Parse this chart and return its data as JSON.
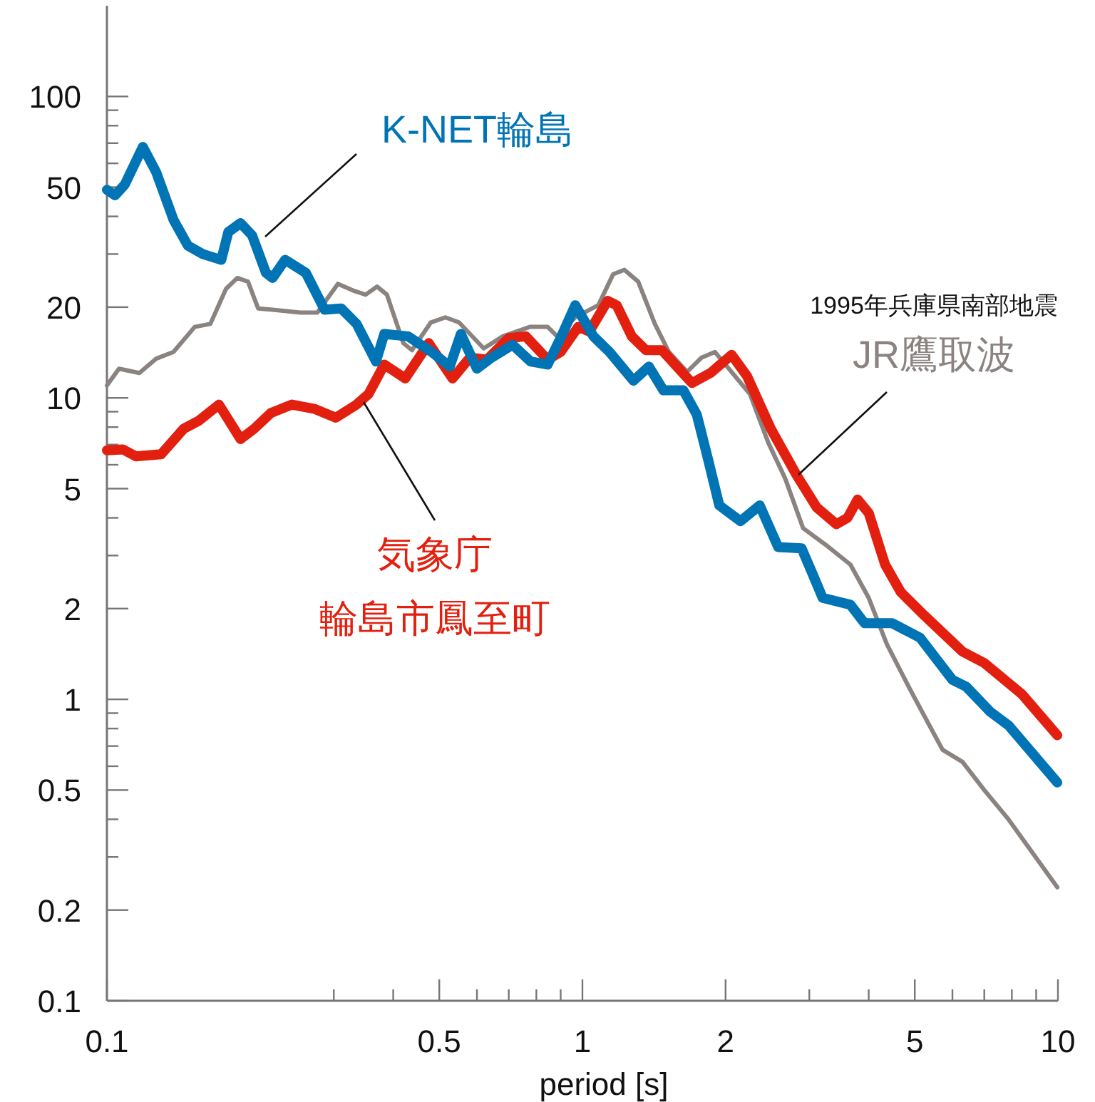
{
  "chart_data": {
    "type": "line",
    "xlabel": "period [s]",
    "log": "xy",
    "grid": false,
    "legend": false,
    "marker": "none",
    "line_style": "solid",
    "xlim": [
      0.1,
      10
    ],
    "ylim": [
      0.1,
      200
    ],
    "xticks": [
      0.1,
      {
        "value": 0.3,
        "label": null
      },
      {
        "value": 0.4,
        "label": null
      },
      0.5,
      {
        "value": 0.6,
        "label": null
      },
      {
        "value": 0.7,
        "label": null
      },
      {
        "value": 0.8,
        "label": null
      },
      {
        "value": 0.9,
        "label": null
      },
      1,
      2,
      {
        "value": 3,
        "label": null
      },
      {
        "value": 4,
        "label": null
      },
      5,
      {
        "value": 6,
        "label": null
      },
      {
        "value": 7,
        "label": null
      },
      {
        "value": 8,
        "label": null
      },
      {
        "value": 9,
        "label": null
      },
      10
    ],
    "yticks": [
      0.1,
      0.2,
      {
        "value": 0.3,
        "label": null
      },
      {
        "value": 0.4,
        "label": null
      },
      0.5,
      {
        "value": 0.6,
        "label": null
      },
      {
        "value": 0.7,
        "label": null
      },
      {
        "value": 0.8,
        "label": null
      },
      {
        "value": 0.9,
        "label": null
      },
      1,
      2,
      {
        "value": 3,
        "label": null
      },
      {
        "value": 4,
        "label": null
      },
      5,
      {
        "value": 6,
        "label": null
      },
      {
        "value": 7,
        "label": null
      },
      {
        "value": 8,
        "label": null
      },
      {
        "value": 9,
        "label": null
      },
      10,
      20,
      {
        "value": 30,
        "label": null
      },
      {
        "value": 40,
        "label": null
      },
      50,
      {
        "value": 60,
        "label": null
      },
      {
        "value": 70,
        "label": null
      },
      {
        "value": 80,
        "label": null
      },
      {
        "value": 90,
        "label": null
      },
      100
    ],
    "annotations": [
      "1995年兵庫県南部地震"
    ],
    "series": [
      {
        "name": "K-NET輪島",
        "color": "#0074b4",
        "x": [
          0.1,
          0.104,
          0.109,
          0.119,
          0.127,
          0.138,
          0.148,
          0.159,
          0.174,
          0.18,
          0.191,
          0.202,
          0.216,
          0.223,
          0.237,
          0.262,
          0.287,
          0.311,
          0.335,
          0.368,
          0.383,
          0.43,
          0.482,
          0.526,
          0.555,
          0.6,
          0.644,
          0.713,
          0.778,
          0.845,
          0.903,
          0.966,
          1.055,
          1.14,
          1.28,
          1.38,
          1.48,
          1.63,
          1.74,
          1.84,
          1.94,
          2.15,
          2.36,
          2.58,
          2.89,
          3.05,
          3.2,
          3.66,
          3.92,
          4.48,
          5.13,
          6.0,
          6.42,
          7.2,
          7.87,
          9.97
        ],
        "values": [
          49,
          47,
          51,
          68,
          56,
          39,
          32,
          30,
          28.7,
          35.5,
          38,
          34.6,
          26,
          25,
          28.7,
          26,
          19.6,
          19.8,
          17.6,
          13.2,
          16.3,
          16,
          14.2,
          12.7,
          16.3,
          12.5,
          13.6,
          15,
          13.2,
          12.9,
          16,
          20.3,
          16,
          14.2,
          11.4,
          12.7,
          10.6,
          10.6,
          8.8,
          6.2,
          4.4,
          3.9,
          4.4,
          3.2,
          3.17,
          2.6,
          2.17,
          2.06,
          1.79,
          1.79,
          1.6,
          1.16,
          1.1,
          0.91,
          0.82,
          0.53
        ]
      },
      {
        "name": "気象庁輪島市鳳至町",
        "color": "#e3200f",
        "x": [
          0.1,
          0.108,
          0.115,
          0.13,
          0.145,
          0.156,
          0.172,
          0.191,
          0.204,
          0.221,
          0.245,
          0.273,
          0.303,
          0.335,
          0.355,
          0.383,
          0.424,
          0.475,
          0.533,
          0.58,
          0.63,
          0.7,
          0.76,
          0.845,
          0.9,
          0.98,
          1.034,
          1.13,
          1.18,
          1.27,
          1.36,
          1.47,
          1.58,
          1.7,
          1.86,
          2.06,
          2.22,
          2.49,
          2.82,
          3.11,
          3.42,
          3.61,
          3.79,
          4.0,
          4.33,
          4.67,
          5.25,
          6.3,
          7.0,
          8.4,
          9.97
        ],
        "values": [
          6.7,
          6.75,
          6.4,
          6.5,
          7.9,
          8.4,
          9.5,
          7.3,
          7.9,
          8.9,
          9.5,
          9.2,
          8.6,
          9.5,
          10.3,
          12.9,
          11.6,
          15.2,
          11.6,
          13.6,
          13.4,
          15.8,
          16,
          13.4,
          14.2,
          17.2,
          16.6,
          21,
          20.3,
          16,
          14.4,
          14.4,
          12.7,
          11.2,
          12.1,
          13.9,
          11.8,
          7.9,
          5.55,
          4.33,
          3.81,
          4.0,
          4.6,
          4.15,
          2.8,
          2.27,
          1.89,
          1.44,
          1.32,
          1.04,
          0.76
        ]
      },
      {
        "name": "JR鷹取波",
        "color": "#8a8380",
        "x": [
          0.1,
          0.106,
          0.117,
          0.127,
          0.138,
          0.153,
          0.165,
          0.178,
          0.188,
          0.198,
          0.208,
          0.223,
          0.255,
          0.277,
          0.306,
          0.332,
          0.35,
          0.37,
          0.388,
          0.42,
          0.438,
          0.48,
          0.515,
          0.55,
          0.62,
          0.68,
          0.775,
          0.845,
          0.885,
          0.966,
          1.08,
          1.16,
          1.225,
          1.31,
          1.42,
          1.52,
          1.66,
          1.78,
          1.9,
          2.25,
          2.46,
          2.67,
          2.91,
          3.26,
          3.66,
          4.0,
          4.37,
          4.9,
          5.72,
          6.3,
          7.0,
          7.87,
          9.97
        ],
        "values": [
          11,
          12.5,
          12.1,
          13.5,
          14.2,
          17.2,
          17.6,
          23,
          25,
          24.3,
          19.8,
          19.6,
          19.2,
          19.2,
          23.9,
          22.6,
          22,
          23.4,
          22,
          15.2,
          14.4,
          17.8,
          18.5,
          17.8,
          14.6,
          16,
          17.2,
          17.2,
          16,
          18.5,
          20.3,
          25.7,
          26.6,
          24.3,
          17.6,
          14.2,
          12.2,
          13.6,
          14.2,
          10.3,
          7.1,
          5.4,
          3.7,
          3.24,
          2.8,
          2.17,
          1.52,
          1.07,
          0.68,
          0.62,
          0.5,
          0.4,
          0.238
        ]
      }
    ]
  }
}
